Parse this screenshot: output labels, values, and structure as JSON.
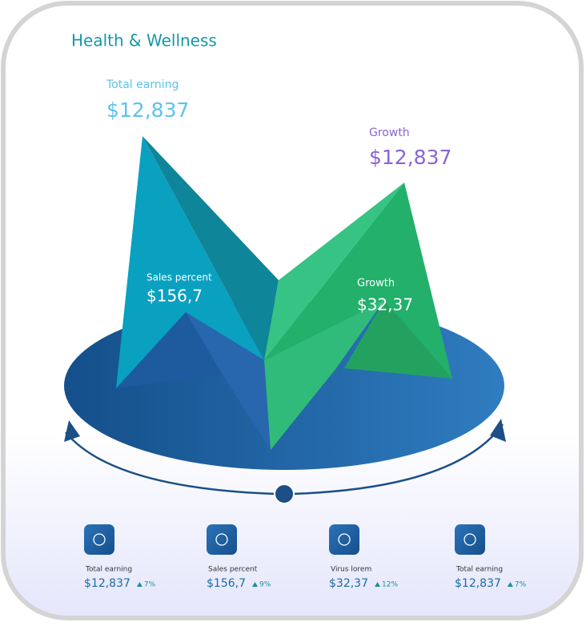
{
  "header": {
    "title": "Health & Wellness"
  },
  "callouts": [
    {
      "label": "Total earning",
      "value": "$12,837"
    },
    {
      "label": "Growth",
      "value": "$12,837"
    },
    {
      "label": "Sales percent",
      "value": "$156,7"
    },
    {
      "label": "Growth",
      "value": "$32,37"
    }
  ],
  "stats": [
    {
      "label": "Total earning",
      "value": "$12,837",
      "change": "7%"
    },
    {
      "label": "Sales percent",
      "value": "$156,7",
      "change": "9%"
    },
    {
      "label": "Virus lorem",
      "value": "$32,37",
      "change": "12%"
    },
    {
      "label": "Total earning",
      "value": "$12,837",
      "change": "7%"
    }
  ]
}
